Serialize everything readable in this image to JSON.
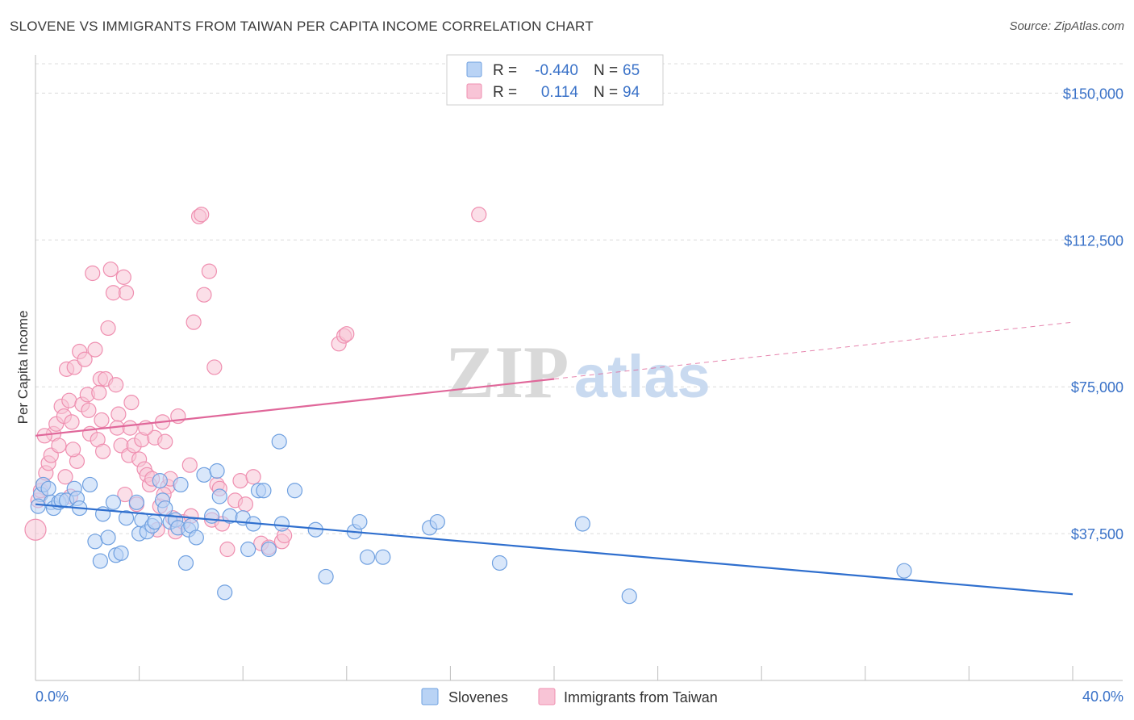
{
  "title": "SLOVENE VS IMMIGRANTS FROM TAIWAN PER CAPITA INCOME CORRELATION CHART",
  "source": "Source: ZipAtlas.com",
  "colors": {
    "slovenes": "#6fa0e0",
    "slovenes_fill": "#b9d3f5",
    "taiwan": "#ef8fb0",
    "taiwan_fill": "#f8c4d6",
    "slovenes_line": "#2f6fce",
    "taiwan_line": "#e0679a",
    "tick_text": "#3a72c8"
  },
  "legend": {
    "rows": [
      {
        "r_label": "R =",
        "r_value": "-0.440",
        "n_label": "N =",
        "n_value": "65"
      },
      {
        "r_label": "R =",
        "r_value": "0.114",
        "n_label": "N =",
        "n_value": "94"
      }
    ]
  },
  "bottom_legend": [
    "Slovenes",
    "Immigrants from Taiwan"
  ],
  "watermark": {
    "zip": "ZIP",
    "atlas": "atlas"
  },
  "chart_data": {
    "type": "scatter",
    "title": "SLOVENE VS IMMIGRANTS FROM TAIWAN PER CAPITA INCOME CORRELATION CHART",
    "xlabel": "",
    "ylabel": "Per Capita Income",
    "xlim": [
      0,
      40
    ],
    "ylim": [
      0,
      157500
    ],
    "x_tick_labels": [
      "0.0%",
      "40.0%"
    ],
    "y_ticks": [
      37500,
      75000,
      112500,
      150000
    ],
    "y_tick_labels": [
      "$37,500",
      "$75,000",
      "$112,500",
      "$150,000"
    ],
    "grid": true,
    "legend_position": "top-center",
    "series": [
      {
        "name": "Slovenes",
        "r": -0.44,
        "n": 65,
        "trend": {
          "x": [
            0,
            40
          ],
          "y": [
            45000,
            22000
          ],
          "dashed_from": null
        },
        "points": [
          [
            0.2,
            47500
          ],
          [
            0.3,
            50000
          ],
          [
            0.5,
            49000
          ],
          [
            0.6,
            45500
          ],
          [
            0.7,
            44000
          ],
          [
            0.9,
            45500
          ],
          [
            1.0,
            46000
          ],
          [
            1.2,
            46000
          ],
          [
            1.5,
            49000
          ],
          [
            1.6,
            46500
          ],
          [
            1.7,
            44000
          ],
          [
            2.1,
            50000
          ],
          [
            2.3,
            35500
          ],
          [
            2.5,
            30500
          ],
          [
            2.6,
            42500
          ],
          [
            2.8,
            36500
          ],
          [
            3.0,
            45500
          ],
          [
            3.1,
            32000
          ],
          [
            3.3,
            32500
          ],
          [
            3.5,
            41500
          ],
          [
            3.9,
            45500
          ],
          [
            4.0,
            37500
          ],
          [
            4.1,
            41000
          ],
          [
            4.3,
            38000
          ],
          [
            4.5,
            39500
          ],
          [
            4.6,
            40500
          ],
          [
            4.8,
            51000
          ],
          [
            4.9,
            46000
          ],
          [
            5.0,
            44000
          ],
          [
            5.2,
            40500
          ],
          [
            5.4,
            41000
          ],
          [
            5.5,
            39000
          ],
          [
            5.6,
            50000
          ],
          [
            5.8,
            30000
          ],
          [
            5.9,
            38500
          ],
          [
            6.0,
            39500
          ],
          [
            6.2,
            36500
          ],
          [
            6.5,
            52500
          ],
          [
            6.8,
            42000
          ],
          [
            7.0,
            53500
          ],
          [
            7.1,
            47000
          ],
          [
            7.3,
            22500
          ],
          [
            7.5,
            42000
          ],
          [
            8.0,
            41500
          ],
          [
            8.2,
            33500
          ],
          [
            8.4,
            40000
          ],
          [
            8.6,
            48500
          ],
          [
            8.8,
            48500
          ],
          [
            9.0,
            33500
          ],
          [
            9.4,
            61000
          ],
          [
            9.5,
            40000
          ],
          [
            10.0,
            48500
          ],
          [
            10.8,
            38500
          ],
          [
            11.2,
            26500
          ],
          [
            12.3,
            38000
          ],
          [
            12.5,
            40500
          ],
          [
            12.8,
            31500
          ],
          [
            13.4,
            31500
          ],
          [
            15.2,
            39000
          ],
          [
            15.5,
            40500
          ],
          [
            17.9,
            30000
          ],
          [
            21.1,
            40000
          ],
          [
            22.9,
            21500
          ],
          [
            33.5,
            28000
          ],
          [
            0.1,
            44500
          ]
        ]
      },
      {
        "name": "Immigrants from Taiwan",
        "r": 0.114,
        "n": 94,
        "trend": {
          "x": [
            0,
            40
          ],
          "y": [
            62500,
            91500
          ],
          "dashed_from": 20
        },
        "points": [
          [
            0.0,
            38500
          ],
          [
            0.1,
            46000
          ],
          [
            0.2,
            48500
          ],
          [
            0.3,
            50000
          ],
          [
            0.4,
            53000
          ],
          [
            0.5,
            55500
          ],
          [
            0.6,
            57500
          ],
          [
            0.7,
            63000
          ],
          [
            0.8,
            65500
          ],
          [
            0.9,
            60000
          ],
          [
            1.0,
            70000
          ],
          [
            1.1,
            67500
          ],
          [
            1.2,
            79500
          ],
          [
            1.3,
            71500
          ],
          [
            1.4,
            66000
          ],
          [
            1.5,
            80000
          ],
          [
            1.6,
            56000
          ],
          [
            1.7,
            84000
          ],
          [
            1.8,
            70500
          ],
          [
            1.9,
            82000
          ],
          [
            2.0,
            73000
          ],
          [
            2.1,
            63000
          ],
          [
            2.2,
            104000
          ],
          [
            2.3,
            84500
          ],
          [
            2.4,
            61500
          ],
          [
            2.5,
            77000
          ],
          [
            2.6,
            58500
          ],
          [
            2.7,
            77000
          ],
          [
            2.8,
            90000
          ],
          [
            2.9,
            105000
          ],
          [
            3.0,
            99000
          ],
          [
            3.1,
            75500
          ],
          [
            3.2,
            68000
          ],
          [
            3.3,
            60000
          ],
          [
            3.4,
            103000
          ],
          [
            3.5,
            99000
          ],
          [
            3.6,
            57500
          ],
          [
            3.7,
            71000
          ],
          [
            3.8,
            60000
          ],
          [
            3.9,
            45000
          ],
          [
            4.0,
            56500
          ],
          [
            4.1,
            61500
          ],
          [
            4.2,
            54000
          ],
          [
            4.3,
            52500
          ],
          [
            4.4,
            50000
          ],
          [
            4.5,
            51500
          ],
          [
            4.6,
            62000
          ],
          [
            4.7,
            38500
          ],
          [
            4.8,
            44500
          ],
          [
            4.9,
            66000
          ],
          [
            5.0,
            61000
          ],
          [
            5.1,
            49500
          ],
          [
            5.2,
            51500
          ],
          [
            5.3,
            41500
          ],
          [
            5.4,
            38000
          ],
          [
            5.5,
            67500
          ],
          [
            5.7,
            40500
          ],
          [
            6.0,
            42000
          ],
          [
            6.1,
            91500
          ],
          [
            6.3,
            118500
          ],
          [
            6.4,
            119000
          ],
          [
            6.5,
            98500
          ],
          [
            6.7,
            104500
          ],
          [
            6.8,
            41000
          ],
          [
            6.9,
            80000
          ],
          [
            7.0,
            50000
          ],
          [
            7.1,
            49000
          ],
          [
            7.2,
            40000
          ],
          [
            7.4,
            33500
          ],
          [
            7.7,
            46000
          ],
          [
            7.9,
            51000
          ],
          [
            8.1,
            45000
          ],
          [
            8.4,
            52000
          ],
          [
            8.7,
            35000
          ],
          [
            9.0,
            34000
          ],
          [
            9.5,
            35500
          ],
          [
            9.6,
            37000
          ],
          [
            11.7,
            86000
          ],
          [
            11.9,
            88000
          ],
          [
            12.0,
            88500
          ],
          [
            17.1,
            119000
          ],
          [
            0.35,
            62500
          ],
          [
            1.15,
            52000
          ],
          [
            1.35,
            47000
          ],
          [
            1.45,
            59000
          ],
          [
            2.05,
            69000
          ],
          [
            2.45,
            73500
          ],
          [
            2.55,
            66500
          ],
          [
            3.15,
            64500
          ],
          [
            3.45,
            47500
          ],
          [
            3.65,
            64500
          ],
          [
            4.25,
            64500
          ],
          [
            4.95,
            47500
          ],
          [
            5.95,
            55000
          ]
        ]
      }
    ]
  }
}
